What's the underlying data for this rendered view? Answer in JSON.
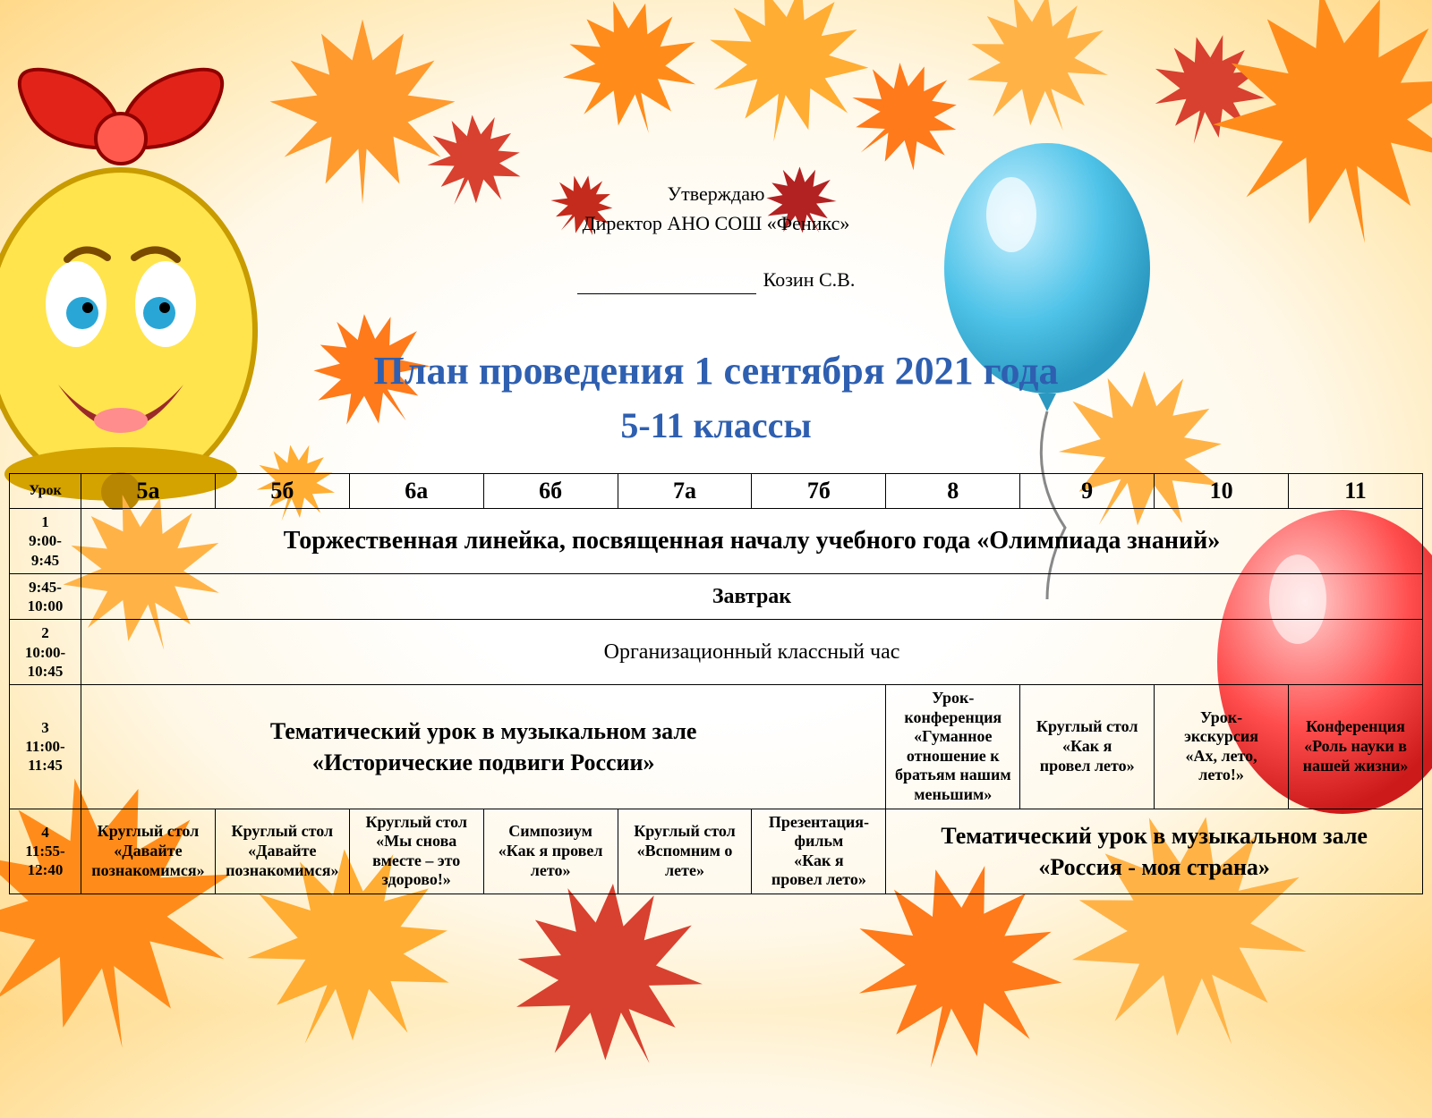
{
  "colors": {
    "background_outer": "#ffd98a",
    "background_inner": "#ffffff",
    "title_color": "#2e5fb0",
    "text_color": "#000000",
    "border_color": "#000000",
    "leaf_orange": "#ff7a1a",
    "leaf_red": "#d32f2f",
    "leaf_yellow": "#ffcc33",
    "balloon_blue": "#4fc3e8",
    "balloon_red": "#ff4d4d",
    "bell_yellow": "#ffe44d",
    "bow_red": "#e2231a"
  },
  "header": {
    "approve": "Утверждаю",
    "director": "Директор АНО СОШ «Феникс»",
    "name": "Козин С.В."
  },
  "title": {
    "line1": "План проведения 1 сентября 2021 года",
    "line2": "5-11 классы"
  },
  "table": {
    "head": {
      "lesson": "Урок",
      "cols": [
        "5а",
        "5б",
        "6а",
        "6б",
        "7а",
        "7б",
        "8",
        "9",
        "10",
        "11"
      ]
    },
    "rows": [
      {
        "time_label": "1\n9:00-9:45",
        "full": "Торжественная линейка, посвященная началу учебного года «Олимпиада знаний»"
      },
      {
        "time_label": "9:45-\n10:00",
        "full": "Завтрак"
      },
      {
        "time_label": "2\n10:00-\n10:45",
        "full": "Организационный классный час"
      },
      {
        "time_label": "3\n11:00-\n11:45",
        "left": "Тематический урок в музыкальном зале\n«Исторические подвиги России»",
        "c8": "Урок-\nконференция\n«Гуманное\nотношение к\nбратьям нашим\nменьшим»",
        "c9": "Круглый стол\n«Как я\nпровел лето»",
        "c10": "Урок-\nэкскурсия\n«Ах, лето,\nлето!»",
        "c11": "Конференция\n«Роль науки в\nнашей жизни»"
      },
      {
        "time_label": "4\n11:55-\n12:40",
        "c5a": "Круглый стол\n«Давайте\nпознакомимся»",
        "c5b": "Круглый стол\n«Давайте\nпознакомимся»",
        "c6a": "Круглый стол\n«Мы снова\nвместе – это\nздорово!»",
        "c6b": "Симпозиум\n«Как я провел\nлето»",
        "c7a": "Круглый стол\n«Вспомним о\nлете»",
        "c7b": "Презентация-\nфильм\n«Как я\nпровел лето»",
        "right": "Тематический урок в музыкальном зале\n«Россия - моя страна»"
      }
    ]
  }
}
